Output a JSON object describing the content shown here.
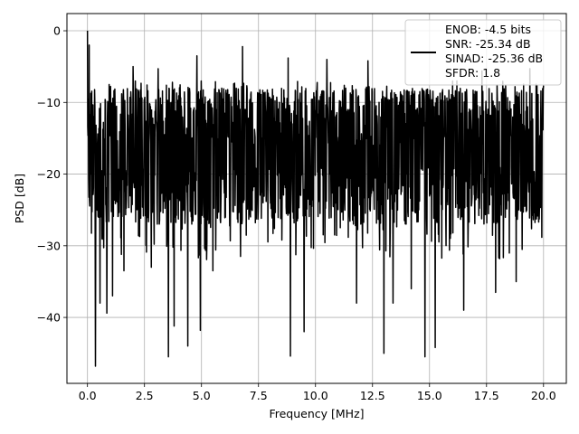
{
  "chart_data": {
    "type": "line",
    "title": "",
    "xlabel": "Frequency [MHz]",
    "ylabel": "PSD [dB]",
    "xlim": [
      -0.9,
      21.0
    ],
    "ylim": [
      -49.2,
      2.4
    ],
    "xticks": [
      0.0,
      2.5,
      5.0,
      7.5,
      10.0,
      12.5,
      15.0,
      17.5,
      20.0
    ],
    "xtick_labels": [
      "0.0",
      "2.5",
      "5.0",
      "7.5",
      "10.0",
      "12.5",
      "15.0",
      "17.5",
      "20.0"
    ],
    "yticks": [
      0,
      -10,
      -20,
      -30,
      -40
    ],
    "ytick_labels": [
      "0",
      "−10",
      "−20",
      "−30",
      "−40"
    ],
    "grid": true,
    "line_color": "#000000",
    "series": [
      {
        "name": "",
        "description": "Noise-like PSD spanning 0 to 20 MHz, mostly between about -27 and -8 dB, with a peak at 0 dB at DC and sharp dips down to about -47 dB",
        "x_range": [
          0.0,
          20.0
        ],
        "dc_peak": [
          0.0,
          0.0
        ],
        "band_low": -27,
        "band_high": -8,
        "peaks": [
          [
            0.07,
            -2.0
          ],
          [
            2.0,
            -5.0
          ],
          [
            3.1,
            -5.3
          ],
          [
            4.8,
            -3.5
          ],
          [
            6.8,
            -2.2
          ],
          [
            8.8,
            -3.8
          ],
          [
            10.5,
            -4.0
          ],
          [
            12.3,
            -4.2
          ],
          [
            14.8,
            -5.8
          ],
          [
            17.3,
            -5.6
          ],
          [
            19.4,
            -5.3
          ]
        ],
        "dips": [
          [
            0.35,
            -46.8
          ],
          [
            0.55,
            -38.0
          ],
          [
            0.85,
            -39.4
          ],
          [
            1.1,
            -37.0
          ],
          [
            1.6,
            -33.5
          ],
          [
            2.8,
            -33.0
          ],
          [
            3.55,
            -45.5
          ],
          [
            3.8,
            -41.2
          ],
          [
            4.4,
            -44.0
          ],
          [
            4.95,
            -41.8
          ],
          [
            5.5,
            -33.5
          ],
          [
            8.9,
            -45.4
          ],
          [
            9.5,
            -42.0
          ],
          [
            11.8,
            -38.0
          ],
          [
            13.0,
            -45.0
          ],
          [
            13.4,
            -38.0
          ],
          [
            14.2,
            -36.0
          ],
          [
            14.8,
            -45.5
          ],
          [
            15.25,
            -44.2
          ],
          [
            16.5,
            -39.0
          ],
          [
            17.9,
            -36.5
          ],
          [
            18.8,
            -35.0
          ]
        ]
      }
    ],
    "legend": {
      "position": "top-right",
      "entries": [
        "ENOB: -4.5 bits",
        "SNR: -25.34 dB",
        "SINAD: -25.36 dB",
        "SFDR: 1.8"
      ]
    }
  }
}
